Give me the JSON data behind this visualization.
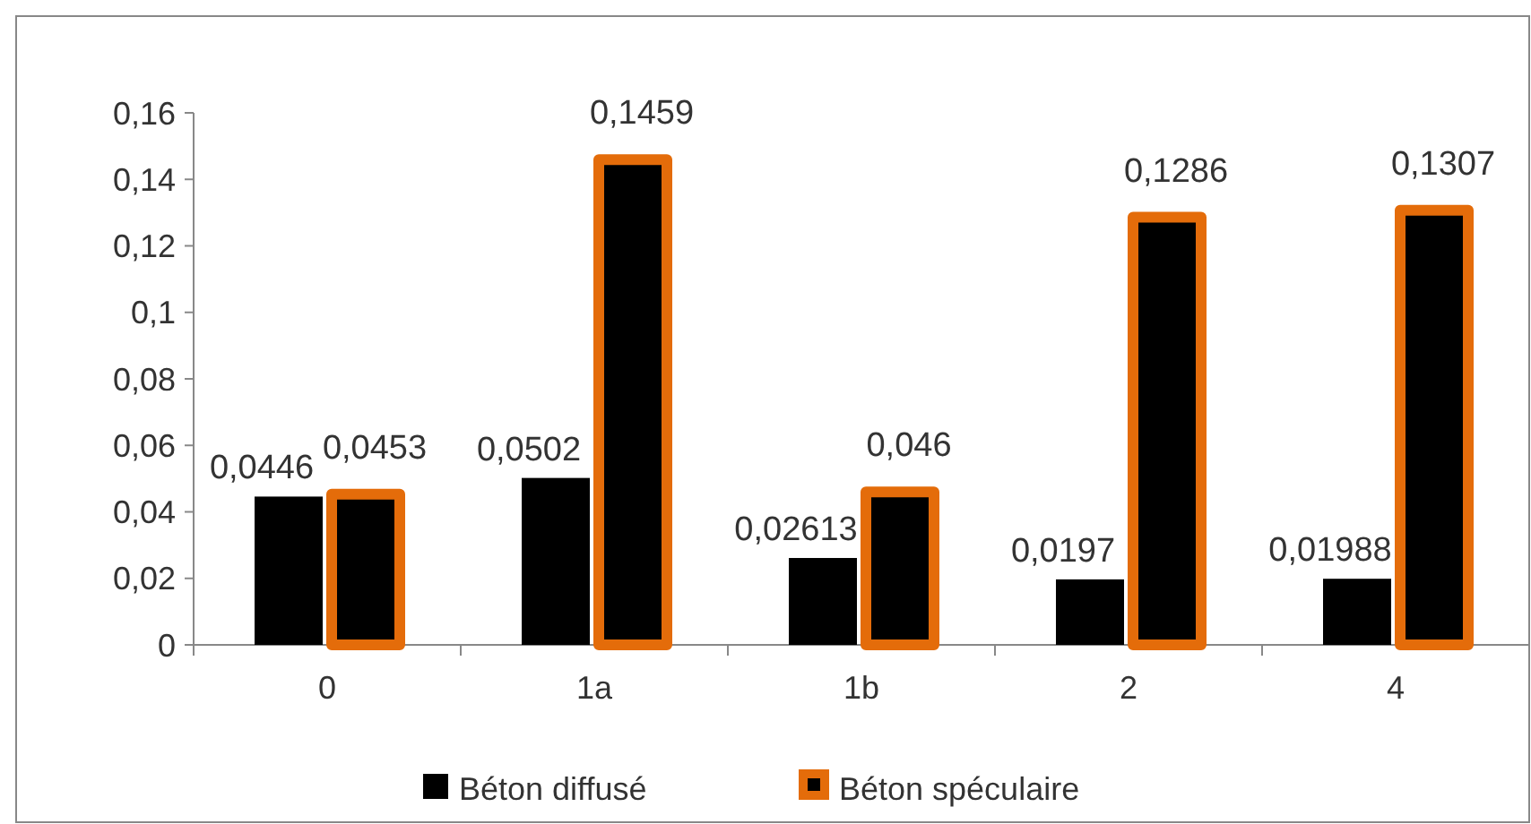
{
  "chart_data": {
    "type": "bar",
    "categories": [
      "0",
      "1a",
      "1b",
      "2",
      "4"
    ],
    "series": [
      {
        "name": "Béton diffusé",
        "color": "#000000",
        "values": [
          0.0446,
          0.0502,
          0.02613,
          0.0197,
          0.01988
        ],
        "value_labels": [
          "0,0446",
          "0,0502",
          "0,02613",
          "0,0197",
          "0,01988"
        ]
      },
      {
        "name": "Béton spéculaire",
        "color": "#e46c0a",
        "values": [
          0.0453,
          0.1459,
          0.046,
          0.1286,
          0.1307
        ],
        "value_labels": [
          "0,0453",
          "0,1459",
          "0,046",
          "0,1286",
          "0,1307"
        ]
      }
    ],
    "ylim": [
      0,
      0.16
    ],
    "yticks": [
      {
        "value": 0,
        "label": "0"
      },
      {
        "value": 0.02,
        "label": "0,02"
      },
      {
        "value": 0.04,
        "label": "0,04"
      },
      {
        "value": 0.06,
        "label": "0,06"
      },
      {
        "value": 0.08,
        "label": "0,08"
      },
      {
        "value": 0.1,
        "label": "0,1"
      },
      {
        "value": 0.12,
        "label": "0,12"
      },
      {
        "value": 0.14,
        "label": "0,14"
      },
      {
        "value": 0.16,
        "label": "0,16"
      }
    ],
    "legend": "bottom",
    "grid": false
  }
}
